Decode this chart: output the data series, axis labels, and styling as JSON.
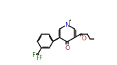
{
  "bg_color": "#ffffff",
  "line_color": "#1a1a1a",
  "atom_colors": {
    "N": "#2020b0",
    "O": "#c02020",
    "F": "#208020",
    "C": "#1a1a1a"
  },
  "font_size_atom": 6.5,
  "line_width": 1.1,
  "ring_r": 0.115,
  "ph_r": 0.105
}
